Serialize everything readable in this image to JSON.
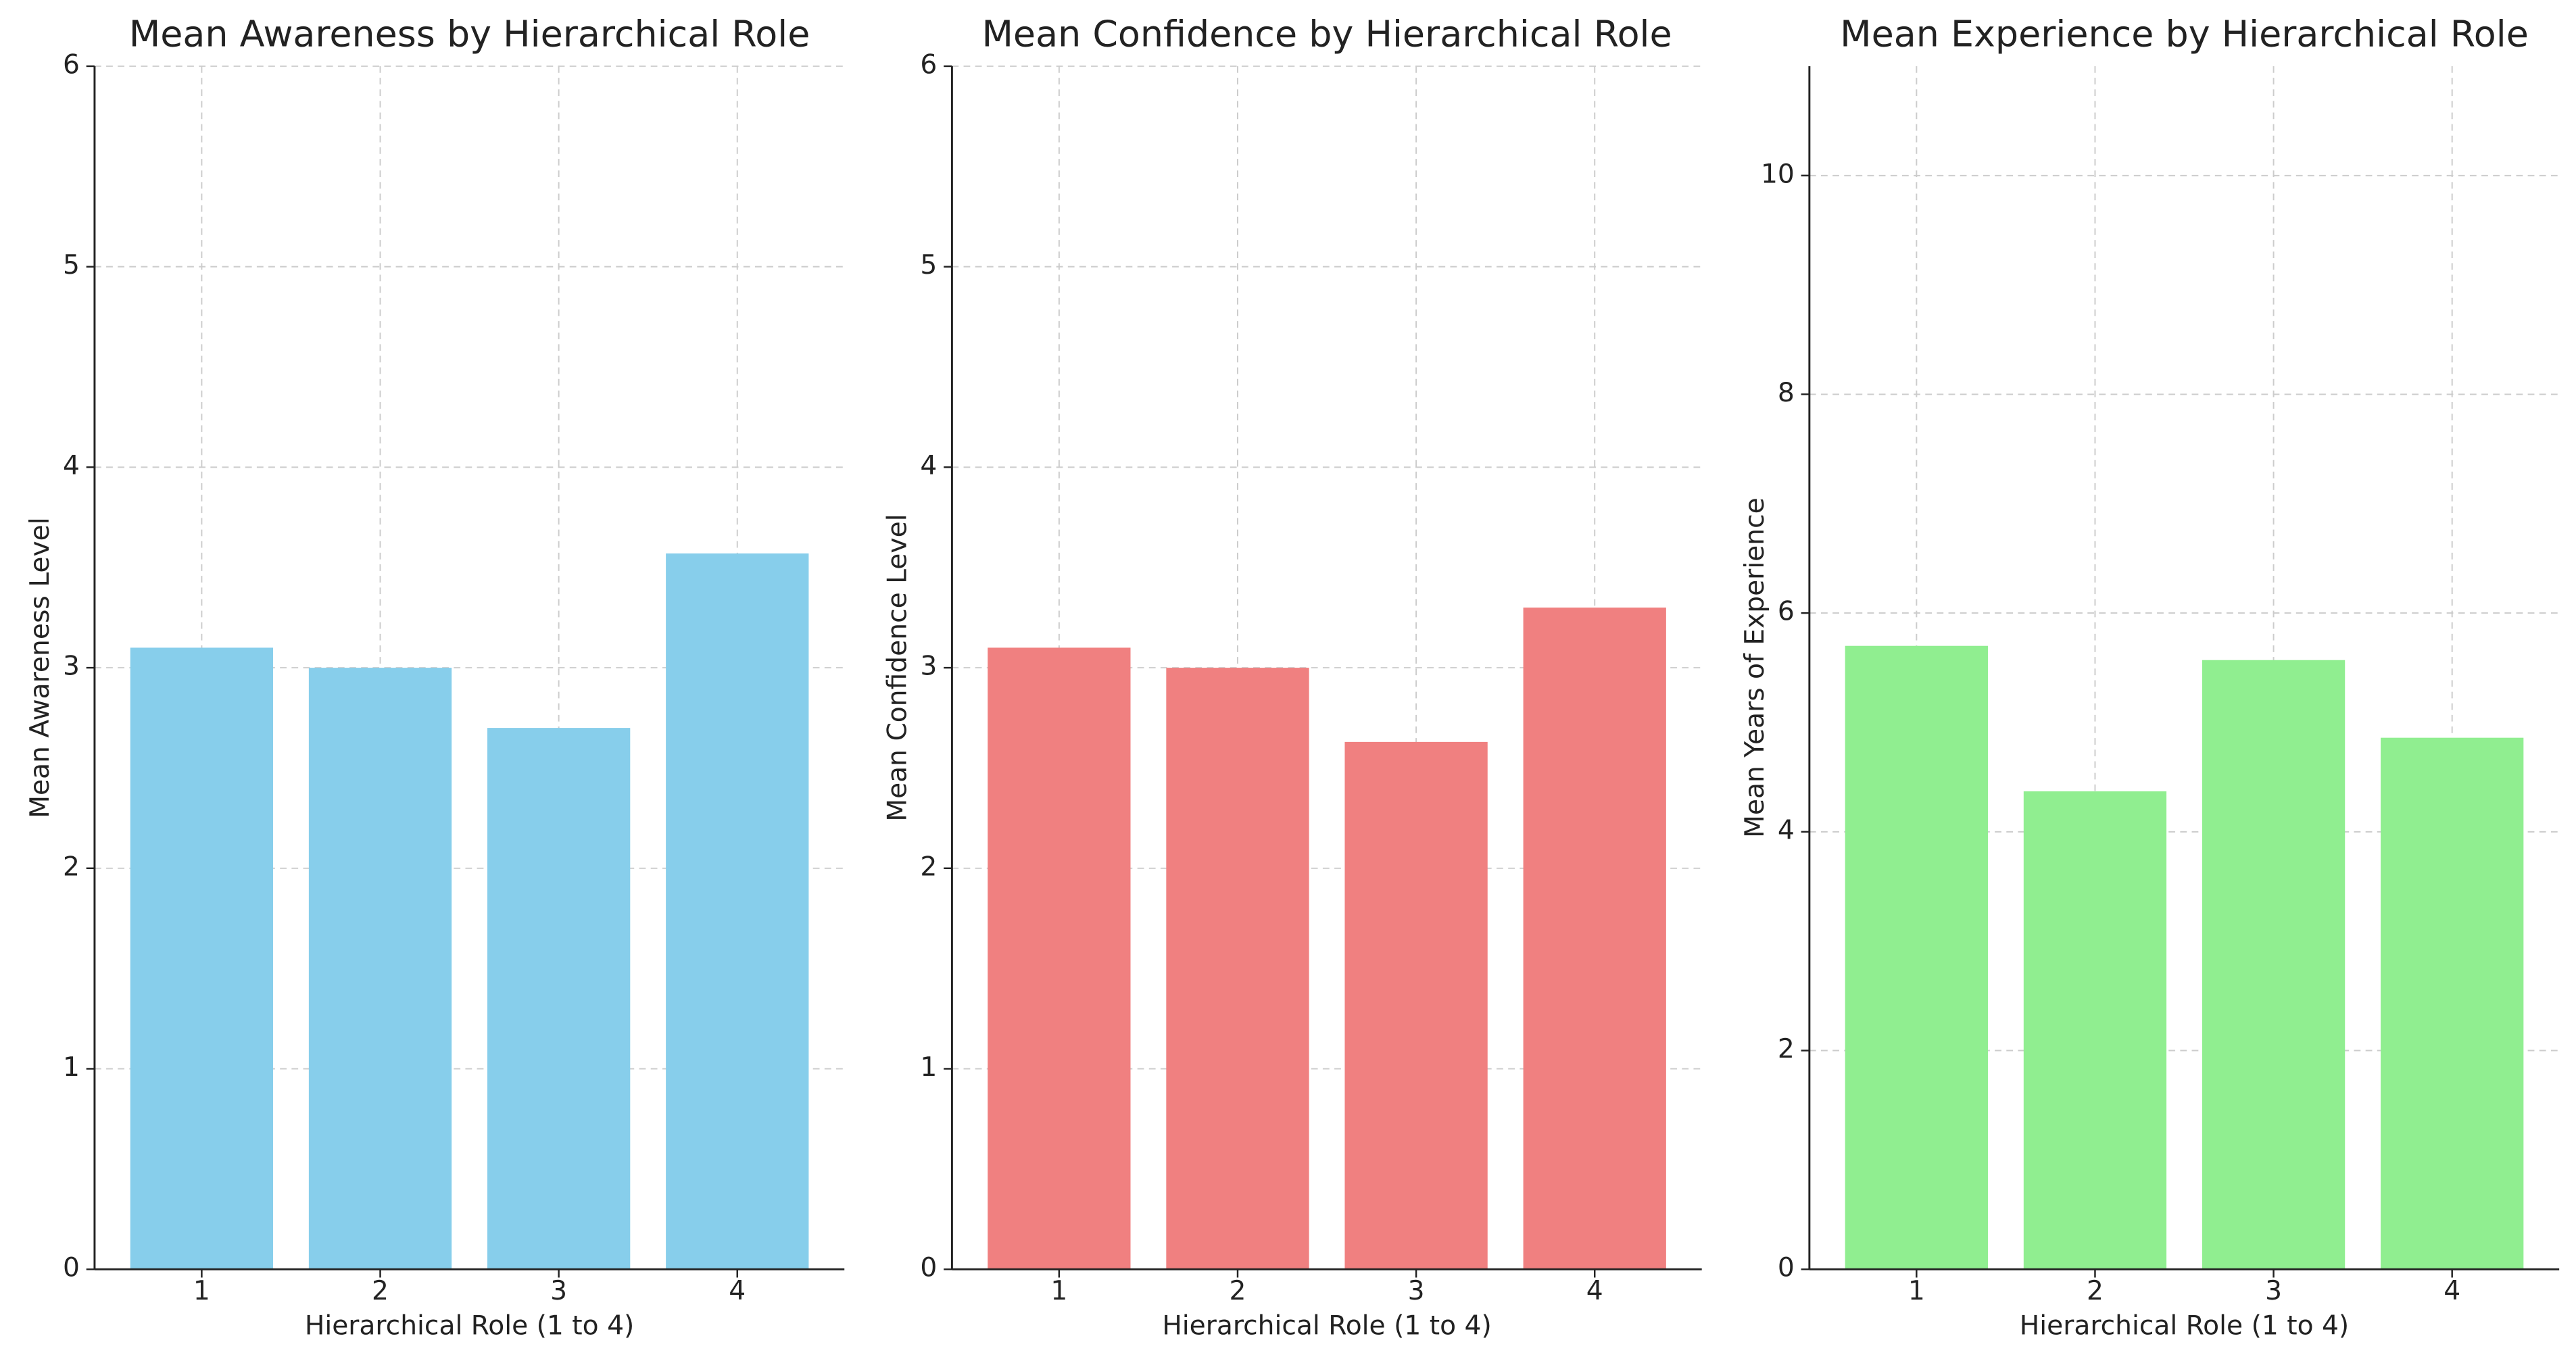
{
  "chart_data": [
    {
      "type": "bar",
      "title": "Mean Awareness by Hierarchical Role",
      "xlabel": "Hierarchical Role (1 to 4)",
      "ylabel": "Mean Awareness Level",
      "categories": [
        "1",
        "2",
        "3",
        "4"
      ],
      "values": [
        3.1,
        3.0,
        2.7,
        3.57
      ],
      "color": "#87ceeb",
      "ylim": [
        0,
        6
      ],
      "yticks": [
        0,
        1,
        2,
        3,
        4,
        5,
        6
      ],
      "grid": true
    },
    {
      "type": "bar",
      "title": "Mean Confidence by Hierarchical Role",
      "xlabel": "Hierarchical Role (1 to 4)",
      "ylabel": "Mean Confidence Level",
      "categories": [
        "1",
        "2",
        "3",
        "4"
      ],
      "values": [
        3.1,
        3.0,
        2.63,
        3.3
      ],
      "color": "#f08080",
      "ylim": [
        0,
        6
      ],
      "yticks": [
        0,
        1,
        2,
        3,
        4,
        5,
        6
      ],
      "grid": true
    },
    {
      "type": "bar",
      "title": "Mean Experience by Hierarchical Role",
      "xlabel": "Hierarchical Role (1 to 4)",
      "ylabel": "Mean Years of Experience",
      "categories": [
        "1",
        "2",
        "3",
        "4"
      ],
      "values": [
        5.7,
        4.37,
        5.57,
        4.86
      ],
      "color": "#90ee90",
      "ylim": [
        0,
        11
      ],
      "yticks": [
        0,
        2,
        4,
        6,
        8,
        10
      ],
      "grid": true
    }
  ]
}
